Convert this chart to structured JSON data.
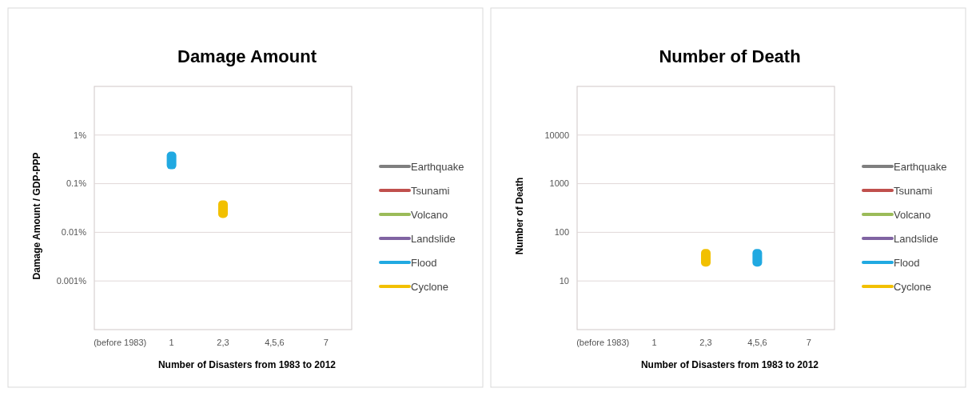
{
  "chart_data": [
    {
      "type": "scatter",
      "title": "Damage Amount",
      "xlabel": "Number of Disasters from 1983 to 2012",
      "ylabel": "Damage Amount / GDP-PPP",
      "categories": [
        "(before 1983)",
        "1",
        "2,3",
        "4,5,6",
        "7"
      ],
      "log": "y",
      "ylim": [
        0.0001,
        10
      ],
      "yticks": [
        {
          "value": 0.001,
          "label": "0.001%"
        },
        {
          "value": 0.01,
          "label": "0.01%"
        },
        {
          "value": 0.1,
          "label": "0.1%"
        },
        {
          "value": 1,
          "label": "1%"
        }
      ],
      "grid": "y",
      "legend": "right",
      "marker": "square",
      "series": [
        {
          "name": "Earthquake",
          "color": "#7f7f7f",
          "values": [
            null,
            null,
            null,
            null,
            null
          ]
        },
        {
          "name": "Tsunami",
          "color": "#c0504d",
          "values": [
            null,
            null,
            null,
            null,
            null
          ]
        },
        {
          "name": "Volcano",
          "color": "#9bbb59",
          "values": [
            null,
            null,
            null,
            null,
            null
          ]
        },
        {
          "name": "Landslide",
          "color": "#8064a2",
          "values": [
            null,
            null,
            null,
            null,
            null
          ]
        },
        {
          "name": "Flood",
          "color": "#21a9e1",
          "values": [
            null,
            0.3,
            null,
            null,
            null
          ]
        },
        {
          "name": "Cyclone",
          "color": "#f2c000",
          "values": [
            null,
            null,
            0.03,
            null,
            null
          ]
        }
      ]
    },
    {
      "type": "scatter",
      "title": "Number of Death",
      "xlabel": "Number of Disasters from 1983 to 2012",
      "ylabel": "Number of Death",
      "categories": [
        "(before 1983)",
        "1",
        "2,3",
        "4,5,6",
        "7"
      ],
      "log": "y",
      "ylim": [
        1,
        100000
      ],
      "yticks": [
        10,
        100,
        1000,
        10000
      ],
      "grid": "y",
      "legend": "right",
      "marker": "square",
      "series": [
        {
          "name": "Earthquake",
          "color": "#7f7f7f",
          "values": [
            null,
            null,
            null,
            null,
            null
          ]
        },
        {
          "name": "Tsunami",
          "color": "#c0504d",
          "values": [
            null,
            null,
            null,
            null,
            null
          ]
        },
        {
          "name": "Volcano",
          "color": "#9bbb59",
          "values": [
            null,
            null,
            null,
            null,
            null
          ]
        },
        {
          "name": "Landslide",
          "color": "#8064a2",
          "values": [
            null,
            null,
            null,
            null,
            null
          ]
        },
        {
          "name": "Flood",
          "color": "#21a9e1",
          "values": [
            null,
            null,
            null,
            30,
            null
          ]
        },
        {
          "name": "Cyclone",
          "color": "#f2c000",
          "values": [
            null,
            null,
            30,
            null,
            null
          ]
        }
      ]
    }
  ]
}
